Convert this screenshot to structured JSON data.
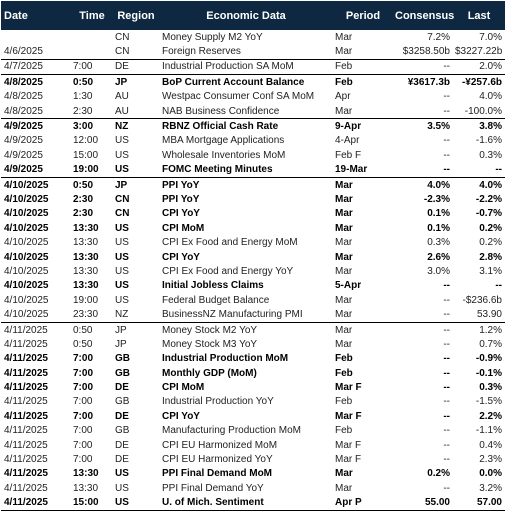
{
  "headers": [
    "Date",
    "Time",
    "Region",
    "Economic Data",
    "Period",
    "Consensus",
    "Last"
  ],
  "rows": [
    [
      "",
      "",
      "CN",
      "Money Supply M2 YoY",
      "Mar",
      "7.2%",
      "7.0%"
    ],
    [
      "4/6/2025",
      "",
      "CN",
      "Foreign Reserves",
      "Mar",
      "$3258.50b",
      "$3227.22b"
    ],
    [
      "4/7/2025",
      "7:00",
      "DE",
      "Industrial Production SA MoM",
      "Feb",
      "--",
      "2.0%"
    ],
    [
      "4/8/2025",
      "0:50",
      "JP",
      "BoP Current Account Balance",
      "Feb",
      "¥3617.3b",
      "-¥257.6b"
    ],
    [
      "4/8/2025",
      "1:30",
      "AU",
      "Westpac Consumer Conf SA MoM",
      "Apr",
      "--",
      "4.0%"
    ],
    [
      "4/8/2025",
      "2:30",
      "AU",
      "NAB Business Confidence",
      "Mar",
      "--",
      "-100.0%"
    ],
    [
      "4/9/2025",
      "3:00",
      "NZ",
      "RBNZ Official Cash Rate",
      "9-Apr",
      "3.5%",
      "3.8%"
    ],
    [
      "4/9/2025",
      "12:00",
      "US",
      "MBA Mortgage Applications",
      "4-Apr",
      "--",
      "-1.6%"
    ],
    [
      "4/9/2025",
      "15:00",
      "US",
      "Wholesale Inventories MoM",
      "Feb F",
      "--",
      "0.3%"
    ],
    [
      "4/9/2025",
      "19:00",
      "US",
      "FOMC Meeting Minutes",
      "19-Mar",
      "--",
      "--"
    ],
    [
      "4/10/2025",
      "0:50",
      "JP",
      "PPI YoY",
      "Mar",
      "4.0%",
      "4.0%"
    ],
    [
      "4/10/2025",
      "2:30",
      "CN",
      "PPI YoY",
      "Mar",
      "-2.3%",
      "-2.2%"
    ],
    [
      "4/10/2025",
      "2:30",
      "CN",
      "CPI YoY",
      "Mar",
      "0.1%",
      "-0.7%"
    ],
    [
      "4/10/2025",
      "13:30",
      "US",
      "CPI MoM",
      "Mar",
      "0.1%",
      "0.2%"
    ],
    [
      "4/10/2025",
      "13:30",
      "US",
      "CPI Ex Food and Energy MoM",
      "Mar",
      "0.3%",
      "0.2%"
    ],
    [
      "4/10/2025",
      "13:30",
      "US",
      "CPI YoY",
      "Mar",
      "2.6%",
      "2.8%"
    ],
    [
      "4/10/2025",
      "13:30",
      "US",
      "CPI Ex Food and Energy YoY",
      "Mar",
      "3.0%",
      "3.1%"
    ],
    [
      "4/10/2025",
      "13:30",
      "US",
      "Initial Jobless Claims",
      "5-Apr",
      "--",
      "--"
    ],
    [
      "4/10/2025",
      "19:00",
      "US",
      "Federal Budget Balance",
      "Mar",
      "--",
      "-$236.6b"
    ],
    [
      "4/10/2025",
      "23:30",
      "NZ",
      "BusinessNZ Manufacturing PMI",
      "Mar",
      "--",
      "53.90"
    ],
    [
      "4/11/2025",
      "0:50",
      "JP",
      "Money Stock M2 YoY",
      "Mar",
      "--",
      "1.2%"
    ],
    [
      "4/11/2025",
      "0:50",
      "JP",
      "Money Stock M3 YoY",
      "Mar",
      "--",
      "0.7%"
    ],
    [
      "4/11/2025",
      "7:00",
      "GB",
      "Industrial Production MoM",
      "Feb",
      "--",
      "-0.9%"
    ],
    [
      "4/11/2025",
      "7:00",
      "GB",
      "Monthly GDP (MoM)",
      "Feb",
      "--",
      "-0.1%"
    ],
    [
      "4/11/2025",
      "7:00",
      "DE",
      "CPI MoM",
      "Mar F",
      "--",
      "0.3%"
    ],
    [
      "4/11/2025",
      "7:00",
      "GB",
      "Industrial Production YoY",
      "Feb",
      "--",
      "-1.5%"
    ],
    [
      "4/11/2025",
      "7:00",
      "DE",
      "CPI YoY",
      "Mar F",
      "--",
      "2.2%"
    ],
    [
      "4/11/2025",
      "7:00",
      "GB",
      "Manufacturing Production MoM",
      "Feb",
      "--",
      "-1.1%"
    ],
    [
      "4/11/2025",
      "7:00",
      "DE",
      "CPI EU Harmonized MoM",
      "Mar F",
      "--",
      "0.4%"
    ],
    [
      "4/11/2025",
      "7:00",
      "DE",
      "CPI EU Harmonized YoY",
      "Mar F",
      "--",
      "2.3%"
    ],
    [
      "4/11/2025",
      "13:30",
      "US",
      "PPI Final Demand MoM",
      "Mar",
      "0.2%",
      "0.0%"
    ],
    [
      "4/11/2025",
      "13:30",
      "US",
      "PPI Final Demand YoY",
      "Mar",
      "--",
      "3.2%"
    ],
    [
      "4/11/2025",
      "15:00",
      "US",
      "U. of Mich. Sentiment",
      "Apr P",
      "55.00",
      "57.00"
    ]
  ],
  "bold_rows": [
    3,
    6,
    9,
    10,
    11,
    12,
    13,
    15,
    17,
    22,
    23,
    24,
    26,
    30,
    32
  ],
  "separator_after_rows": [
    1,
    2,
    5,
    9,
    19
  ],
  "colors": {
    "header_bg": "#0e2841",
    "header_text": "#ffffff"
  }
}
